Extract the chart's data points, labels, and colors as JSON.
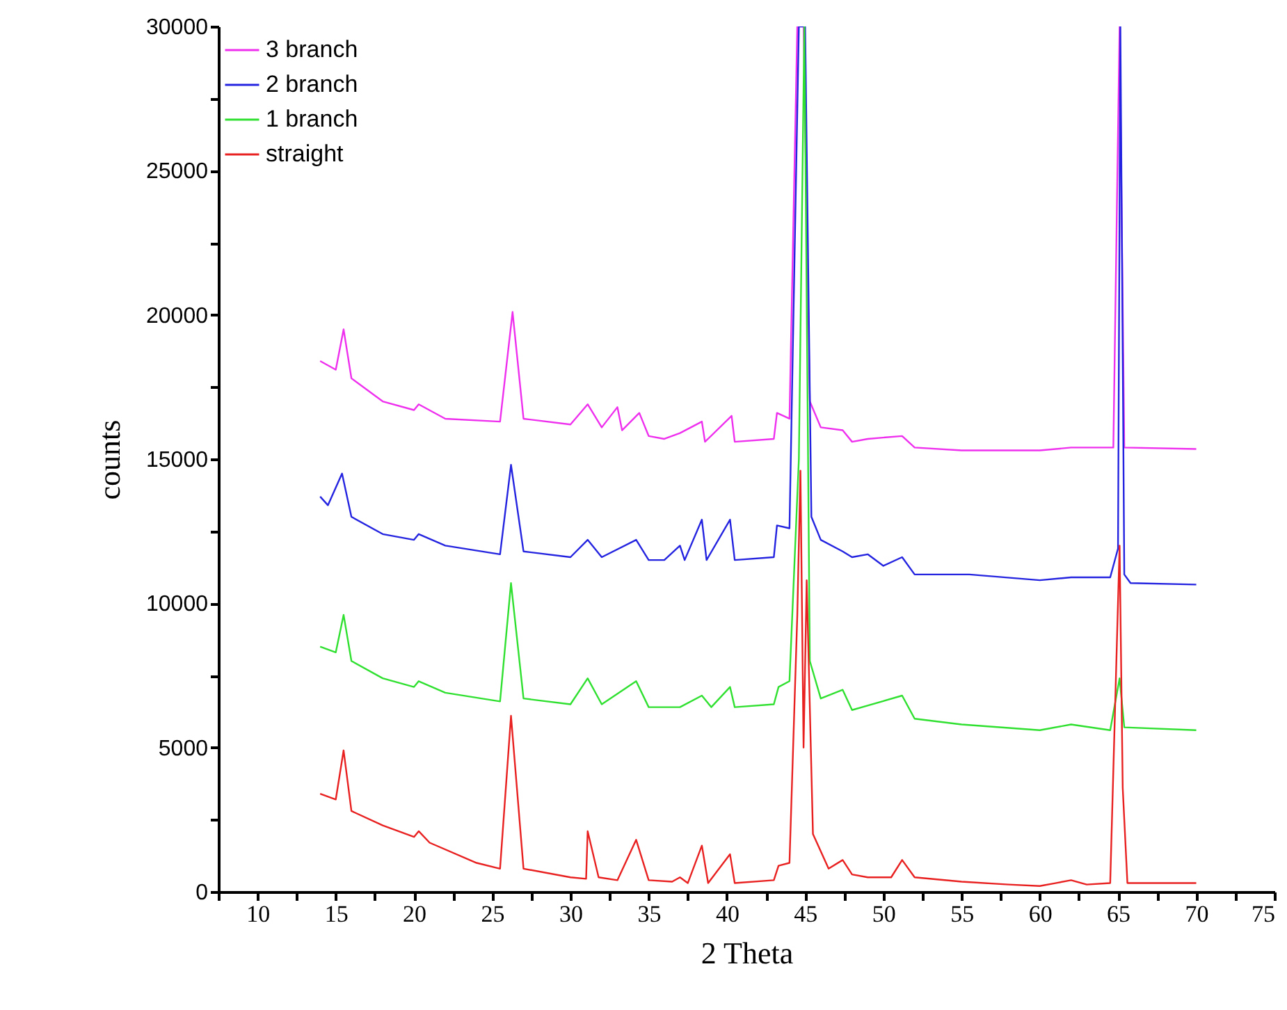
{
  "chart_data": {
    "type": "line",
    "xlabel": "2 Theta",
    "ylabel": "counts",
    "xlim": [
      7.5,
      75
    ],
    "ylim": [
      0,
      30000
    ],
    "xticks": [
      {
        "value": 7.5,
        "label": null
      },
      10,
      {
        "value": 12.5,
        "label": null
      },
      15,
      {
        "value": 17.5,
        "label": null
      },
      20,
      {
        "value": 22.5,
        "label": null
      },
      25,
      {
        "value": 27.5,
        "label": null
      },
      30,
      {
        "value": 32.5,
        "label": null
      },
      35,
      {
        "value": 37.5,
        "label": null
      },
      40,
      {
        "value": 42.5,
        "label": null
      },
      45,
      {
        "value": 47.5,
        "label": null
      },
      50,
      {
        "value": 52.5,
        "label": null
      },
      55,
      {
        "value": 57.5,
        "label": null
      },
      60,
      {
        "value": 62.5,
        "label": null
      },
      65,
      {
        "value": 67.5,
        "label": null
      },
      70,
      {
        "value": 72.5,
        "label": null
      },
      75
    ],
    "yticks": [
      0,
      {
        "value": 2500,
        "label": null
      },
      5000,
      {
        "value": 7500,
        "label": null
      },
      10000,
      {
        "value": 12500,
        "label": null
      },
      15000,
      {
        "value": 17500,
        "label": null
      },
      20000,
      {
        "value": 22500,
        "label": null
      },
      25000,
      {
        "value": 27500,
        "label": null
      },
      30000
    ],
    "legend": "top left",
    "grid": false,
    "series": [
      {
        "name": "3 branch",
        "color": "#ee30ee",
        "x": [
          14,
          15,
          15.5,
          16,
          18,
          20,
          20.3,
          22,
          25.5,
          26.3,
          27,
          30,
          31.1,
          32,
          33,
          33.3,
          34.4,
          35,
          36,
          37,
          38.4,
          38.6,
          40.3,
          40.5,
          43,
          43.2,
          44,
          44.5,
          44.9,
          45.3,
          46,
          47.4,
          48,
          49,
          51.2,
          52,
          55,
          60,
          62,
          64.7,
          65.1,
          65.4,
          70
        ],
        "values": [
          18400,
          18100,
          19500,
          17800,
          17000,
          16700,
          16900,
          16400,
          16300,
          20100,
          16400,
          16200,
          16900,
          16100,
          16800,
          16000,
          16600,
          15800,
          15700,
          15900,
          16300,
          15600,
          16500,
          15600,
          15700,
          16600,
          16400,
          30000,
          30000,
          17000,
          16100,
          16000,
          15600,
          15700,
          15800,
          15400,
          15300,
          15300,
          15400,
          15400,
          30000,
          15400,
          15350
        ]
      },
      {
        "name": "2 branch",
        "color": "#2424e0",
        "x": [
          14,
          14.5,
          15.4,
          16,
          18,
          20,
          20.3,
          22,
          25.5,
          26.2,
          27,
          30,
          31.1,
          32,
          34.2,
          35,
          36,
          37,
          37.3,
          38.4,
          38.7,
          40.2,
          40.5,
          43,
          43.2,
          44,
          44.6,
          45,
          45.4,
          46,
          47.4,
          48,
          49,
          50,
          51.2,
          52,
          55.5,
          60,
          62,
          64.5,
          65,
          65.15,
          65.4,
          65.8,
          70
        ],
        "values": [
          13700,
          13400,
          14500,
          13000,
          12400,
          12200,
          12400,
          12000,
          11700,
          14800,
          11800,
          11600,
          12200,
          11600,
          12200,
          11500,
          11500,
          12000,
          11500,
          12900,
          11500,
          12900,
          11500,
          11600,
          12700,
          12600,
          30000,
          30000,
          13000,
          12200,
          11800,
          11600,
          11700,
          11300,
          11600,
          11000,
          11000,
          10800,
          10900,
          10900,
          11900,
          30000,
          11000,
          10700,
          10650
        ]
      },
      {
        "name": "1 branch",
        "color": "#30e030",
        "x": [
          14,
          15,
          15.5,
          16,
          18,
          20,
          20.3,
          22,
          25.5,
          26.2,
          27,
          30,
          31.1,
          32,
          34.2,
          35,
          37,
          38.4,
          39,
          40.2,
          40.5,
          43,
          43.3,
          44,
          44.6,
          44.95,
          45.3,
          46,
          47.4,
          48,
          51.2,
          52,
          55,
          60,
          62,
          64.5,
          65.1,
          65.4,
          70
        ],
        "values": [
          8500,
          8300,
          9600,
          8000,
          7400,
          7100,
          7300,
          6900,
          6600,
          10700,
          6700,
          6500,
          7400,
          6500,
          7300,
          6400,
          6400,
          6800,
          6400,
          7100,
          6400,
          6500,
          7100,
          7300,
          15000,
          30000,
          8000,
          6700,
          7000,
          6300,
          6800,
          6000,
          5800,
          5600,
          5800,
          5600,
          7400,
          5700,
          5600
        ]
      },
      {
        "name": "straight",
        "color": "#e82020",
        "x": [
          14,
          15,
          15.5,
          16,
          18,
          20,
          20.3,
          21,
          24,
          25.5,
          26.2,
          27,
          30,
          31,
          31.1,
          31.8,
          33,
          34.2,
          35,
          36.5,
          37,
          37.5,
          38.4,
          38.8,
          40.2,
          40.5,
          43,
          43.3,
          44,
          44.5,
          44.7,
          44.9,
          45.1,
          45.5,
          46.5,
          47.4,
          48,
          49,
          50.5,
          51.2,
          52,
          55,
          58,
          60,
          61,
          62,
          63,
          64.5,
          65.1,
          65.3,
          65.6,
          70
        ],
        "values": [
          3400,
          3200,
          4900,
          2800,
          2300,
          1900,
          2100,
          1700,
          1000,
          800,
          6100,
          800,
          500,
          450,
          2100,
          500,
          400,
          1800,
          400,
          350,
          500,
          300,
          1600,
          300,
          1300,
          300,
          400,
          900,
          1000,
          9600,
          14600,
          5000,
          10800,
          2000,
          800,
          1100,
          600,
          500,
          500,
          1100,
          500,
          350,
          250,
          200,
          300,
          400,
          250,
          300,
          12000,
          3600,
          300,
          300
        ]
      }
    ]
  }
}
